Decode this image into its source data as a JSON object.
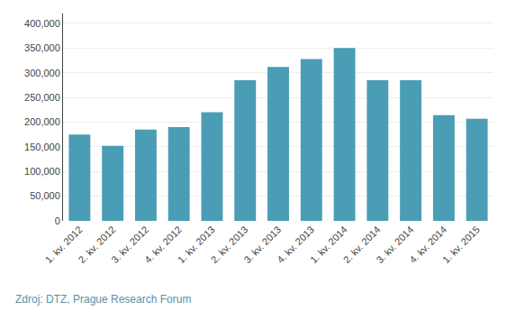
{
  "chart_data": {
    "type": "bar",
    "categories": [
      "1. kv. 2012",
      "2. kv. 2012",
      "3. kv. 2012",
      "4. kv. 2012",
      "1. kv. 2013",
      "2. kv. 2013",
      "3. kv. 2013",
      "4. kv. 2013",
      "1. kv. 2014",
      "2. kv. 2014",
      "3. kv. 2014",
      "4. kv. 2014",
      "1. kv. 2015"
    ],
    "values": [
      175000,
      152000,
      185000,
      190000,
      220000,
      285000,
      312000,
      328000,
      350000,
      285000,
      285000,
      214000,
      207000
    ],
    "color": "#4a9db5",
    "ylim": [
      0,
      420000
    ],
    "yticks": [
      0,
      {
        "value": 50000,
        "label": "50,000"
      },
      {
        "value": 100000,
        "label": "100,000"
      },
      {
        "value": 150000,
        "label": "150,000"
      },
      {
        "value": 200000,
        "label": "200,000"
      },
      {
        "value": 250000,
        "label": "250,000"
      },
      {
        "value": 300000,
        "label": "300,000"
      },
      {
        "value": 350000,
        "label": "350,000"
      },
      {
        "value": 400000,
        "label": "400,000"
      }
    ],
    "grid": true,
    "annotations": [
      "Zdroj: DTZ, Prague Research Forum"
    ]
  }
}
